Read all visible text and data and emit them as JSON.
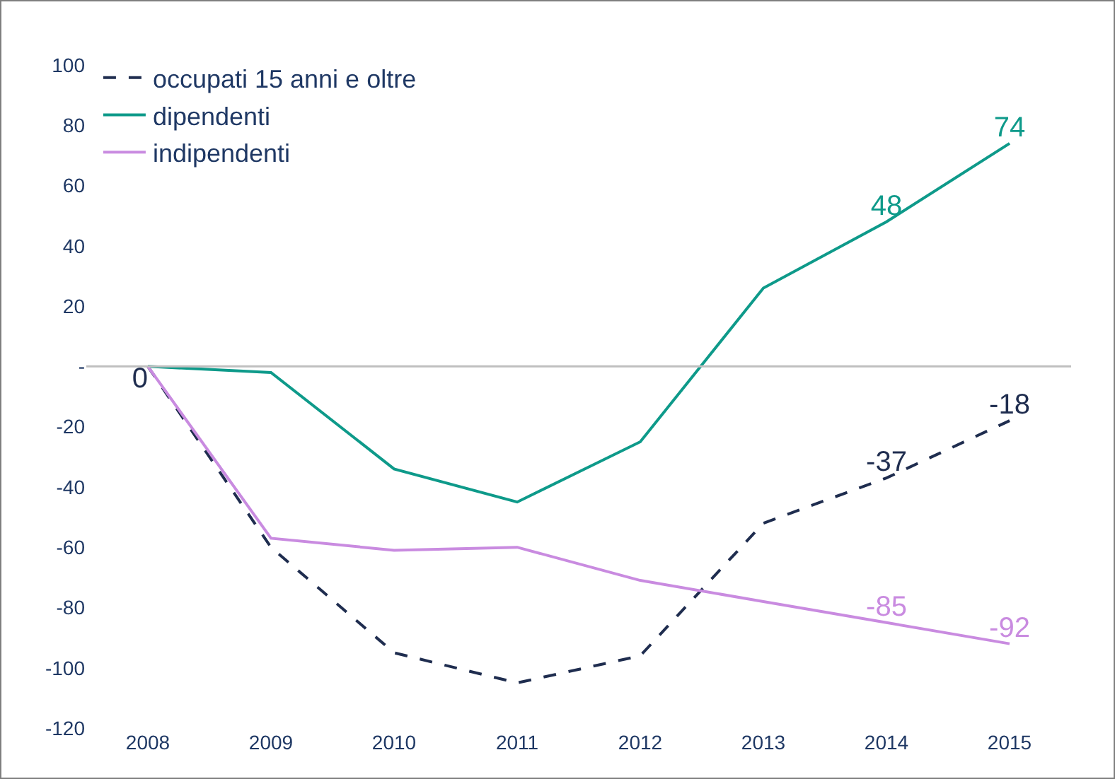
{
  "chart_data": {
    "type": "line",
    "categories": [
      "2008",
      "2009",
      "2010",
      "2011",
      "2012",
      "2013",
      "2014",
      "2015"
    ],
    "series": [
      {
        "name": "occupati 15 anni e oltre",
        "color": "#1f2d4f",
        "line_style": "dashed",
        "values": [
          0,
          -60,
          -95,
          -105,
          -96,
          -52,
          -37,
          -18
        ],
        "value_labels": [
          "0",
          null,
          null,
          null,
          null,
          null,
          "-37",
          "-18"
        ]
      },
      {
        "name": "dipendenti",
        "color": "#0e9a8a",
        "line_style": "solid",
        "values": [
          0,
          -2,
          -34,
          -45,
          -25,
          26,
          48,
          74
        ],
        "value_labels": [
          null,
          null,
          null,
          null,
          null,
          null,
          "48",
          "74"
        ]
      },
      {
        "name": "indipendenti",
        "color": "#c98be0",
        "line_style": "solid",
        "values": [
          0,
          -57,
          -61,
          -60,
          -71,
          -78,
          -85,
          -92
        ],
        "value_labels": [
          null,
          null,
          null,
          null,
          null,
          null,
          "-85",
          "-92"
        ]
      }
    ],
    "ylim": [
      -120,
      100
    ],
    "yticks": [
      -120,
      -100,
      -80,
      -60,
      -40,
      -20,
      {
        "value": 0,
        "label": "-"
      },
      20,
      40,
      60,
      80,
      100
    ],
    "ref_lines": [
      {
        "axis": "y",
        "value": 0,
        "color": "#bfbfbf"
      }
    ],
    "grid": false,
    "legend": "top left",
    "marker": "none"
  }
}
